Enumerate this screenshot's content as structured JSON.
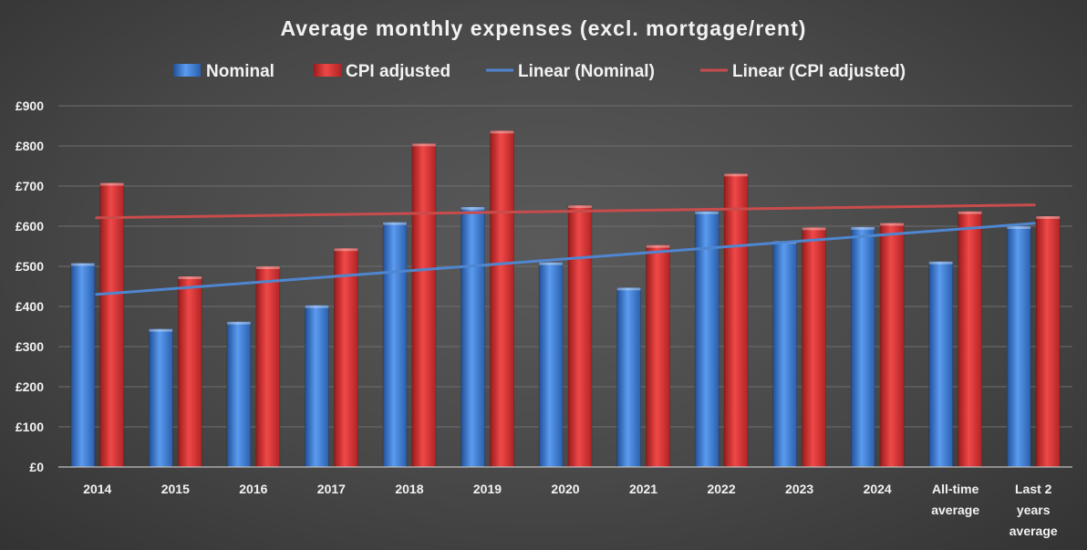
{
  "chart_data": {
    "type": "bar",
    "title": "Average monthly expenses (excl. mortgage/rent)",
    "categories": [
      "2014",
      "2015",
      "2016",
      "2017",
      "2018",
      "2019",
      "2020",
      "2021",
      "2022",
      "2023",
      "2024",
      "All-time average",
      "Last 2 years average"
    ],
    "category_lines": [
      [
        "2014"
      ],
      [
        "2015"
      ],
      [
        "2016"
      ],
      [
        "2017"
      ],
      [
        "2018"
      ],
      [
        "2019"
      ],
      [
        "2020"
      ],
      [
        "2021"
      ],
      [
        "2022"
      ],
      [
        "2023"
      ],
      [
        "2024"
      ],
      [
        "All-time",
        "average"
      ],
      [
        "Last 2",
        "years",
        "average"
      ]
    ],
    "series": [
      {
        "name": "Nominal",
        "color": "#3f7fd6",
        "values": [
          508,
          344,
          362,
          403,
          610,
          648,
          510,
          447,
          637,
          563,
          598,
          512,
          600
        ]
      },
      {
        "name": "CPI adjusted",
        "color": "#d83434",
        "values": [
          708,
          475,
          500,
          545,
          806,
          838,
          652,
          553,
          731,
          597,
          608,
          637,
          625
        ]
      }
    ],
    "trendlines": [
      {
        "name": "Linear (Nominal)",
        "color": "#4f86d0",
        "of": "Nominal",
        "start": 430,
        "end": 607
      },
      {
        "name": "Linear (CPI adjusted)",
        "color": "#c94c4c",
        "of": "CPI adjusted",
        "start": 621,
        "end": 653
      }
    ],
    "y_ticks": [
      "£0",
      "£100",
      "£200",
      "£300",
      "£400",
      "£500",
      "£600",
      "£700",
      "£800",
      "£900"
    ],
    "ylim": [
      0,
      900
    ],
    "xlabel": "",
    "ylabel": "",
    "grid": true,
    "legend_position": "top"
  }
}
